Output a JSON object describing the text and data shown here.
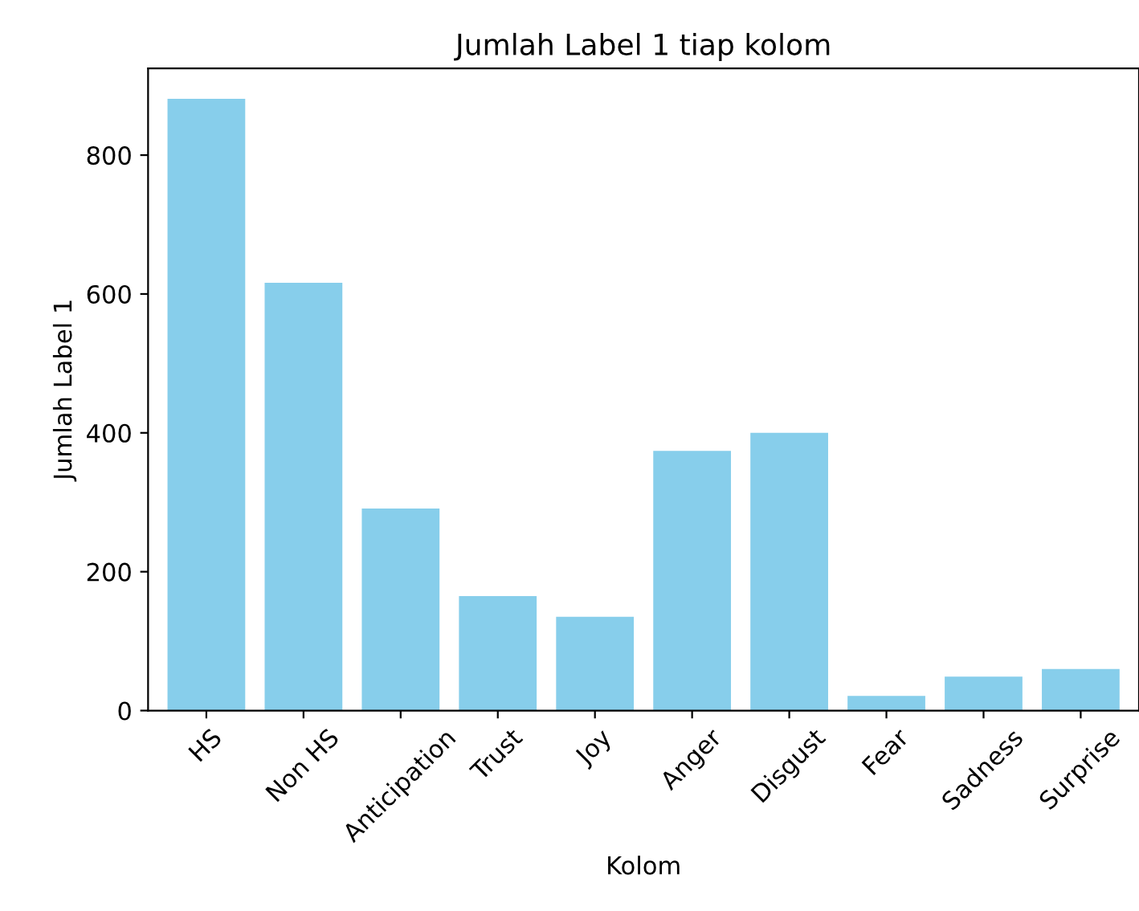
{
  "chart_data": {
    "type": "bar",
    "title": "Jumlah Label 1 tiap kolom",
    "xlabel": "Kolom",
    "ylabel": "Jumlah Label 1",
    "categories": [
      "HS",
      "Non HS",
      "Anticipation",
      "Trust",
      "Joy",
      "Anger",
      "Disgust",
      "Fear",
      "Sadness",
      "Surprise"
    ],
    "values": [
      881,
      616,
      291,
      165,
      135,
      374,
      400,
      21,
      49,
      60
    ],
    "color": "#87ceeb",
    "ylim": [
      0,
      925
    ],
    "yticks": [
      0,
      200,
      400,
      600,
      800
    ],
    "grid": false,
    "legend": false
  }
}
